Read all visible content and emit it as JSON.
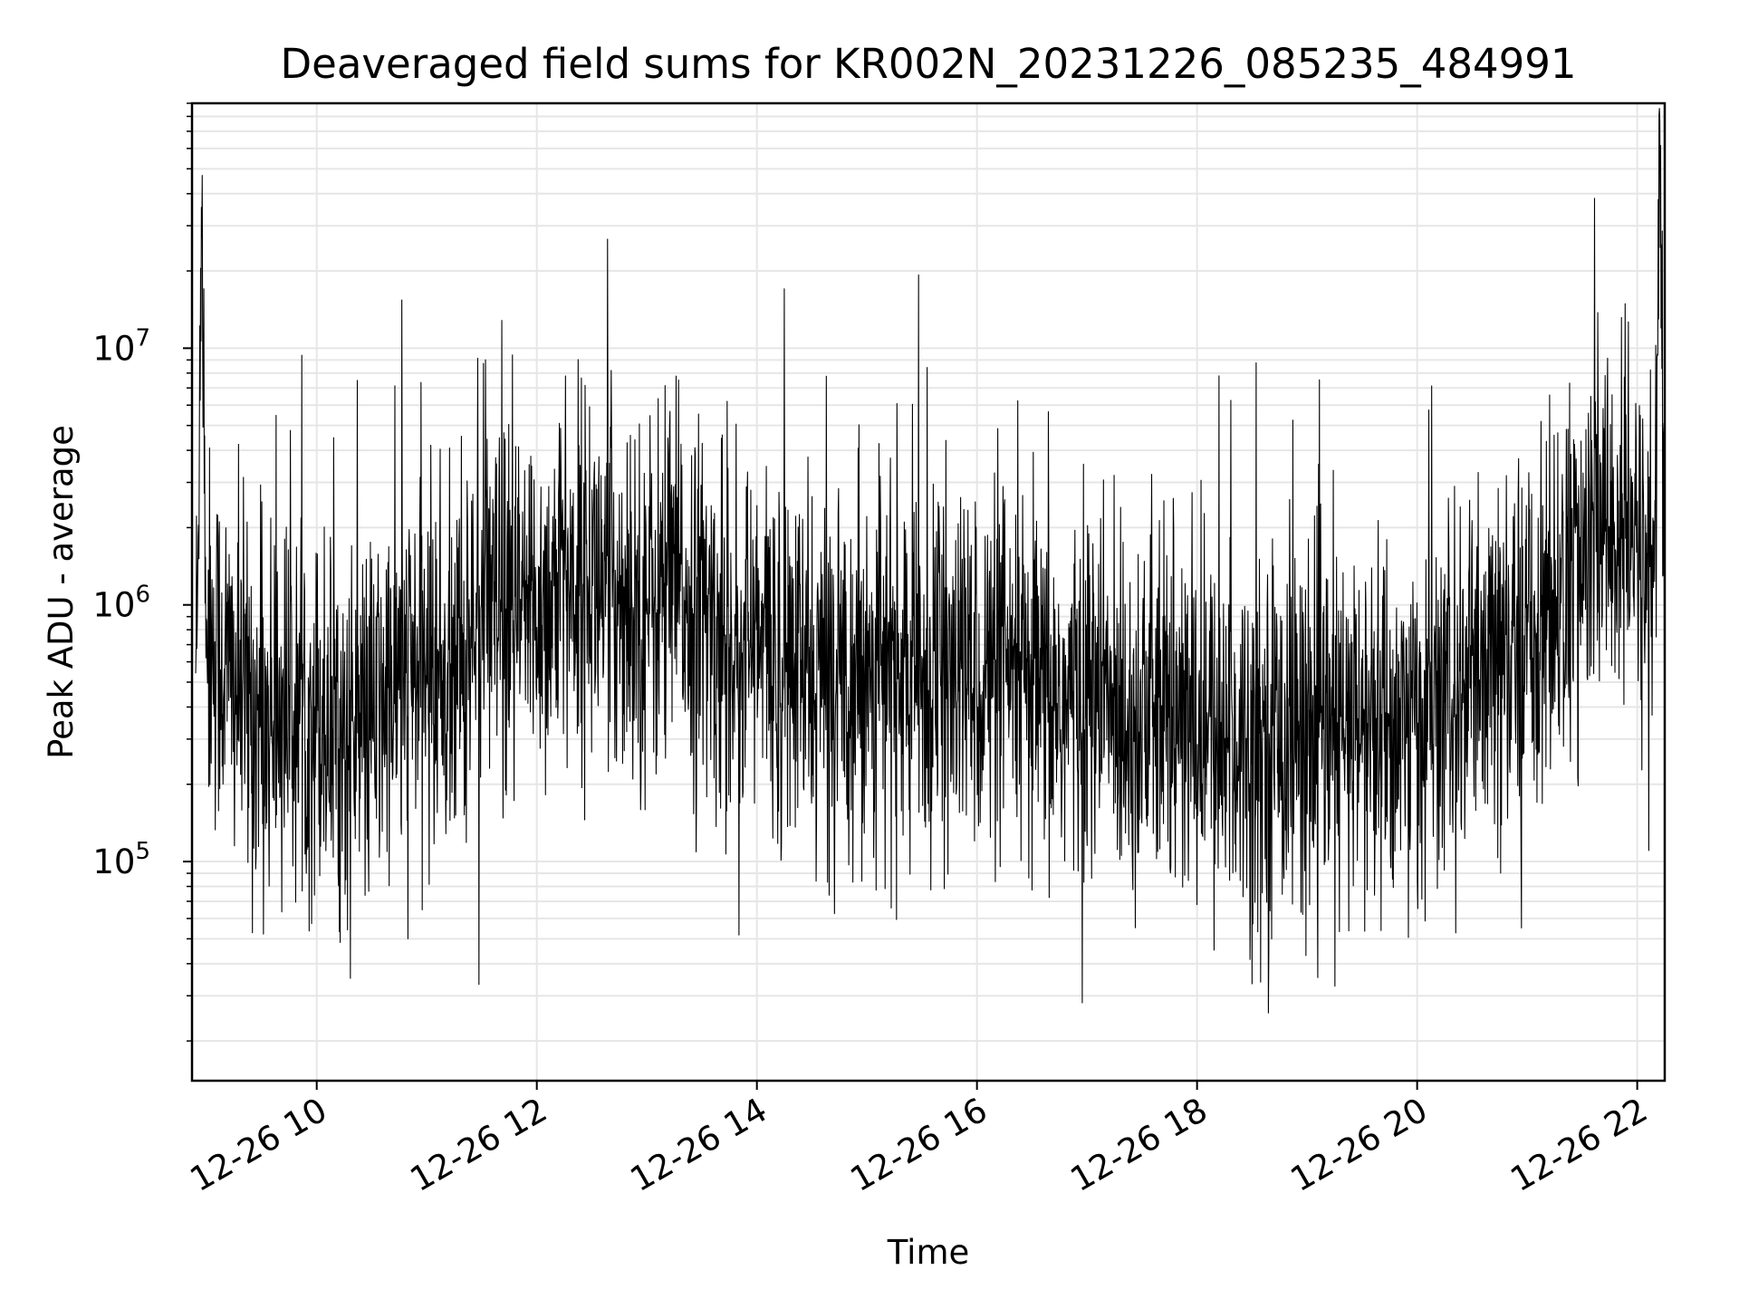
{
  "chart_data": {
    "type": "line",
    "title": "Deaveraged field sums for KR002N_20231226_085235_484991",
    "xlabel": "Time",
    "ylabel": "Peak ADU - average",
    "y_scale": "log",
    "grid": true,
    "legend": "none",
    "colors": {
      "line": "#000000",
      "grid": "#e6e6e6",
      "axes": "#000000"
    },
    "xlim": [
      "2023-12-26 08:52",
      "2023-12-26 22:15"
    ],
    "ylim": [
      14000,
      90000000
    ],
    "x_ticks": [
      {
        "value": "2023-12-26 10:00",
        "label": "12-26 10"
      },
      {
        "value": "2023-12-26 12:00",
        "label": "12-26 12"
      },
      {
        "value": "2023-12-26 14:00",
        "label": "12-26 14"
      },
      {
        "value": "2023-12-26 16:00",
        "label": "12-26 16"
      },
      {
        "value": "2023-12-26 18:00",
        "label": "12-26 18"
      },
      {
        "value": "2023-12-26 20:00",
        "label": "12-26 20"
      },
      {
        "value": "2023-12-26 22:00",
        "label": "12-26 22"
      }
    ],
    "y_ticks": [
      {
        "value": 100000,
        "base": "10",
        "exponent": "5"
      },
      {
        "value": 1000000,
        "base": "10",
        "exponent": "6"
      },
      {
        "value": 10000000,
        "base": "10",
        "exponent": "7"
      }
    ],
    "series": [
      {
        "x": [
          "2023-12-26 08:55",
          "2023-12-26 08:57",
          "2023-12-26 09:00",
          "2023-12-26 09:15",
          "2023-12-26 09:30",
          "2023-12-26 09:45",
          "2023-12-26 10:00",
          "2023-12-26 10:15",
          "2023-12-26 10:30",
          "2023-12-26 10:45",
          "2023-12-26 11:00",
          "2023-12-26 11:15",
          "2023-12-26 11:30",
          "2023-12-26 11:45",
          "2023-12-26 12:00",
          "2023-12-26 12:15",
          "2023-12-26 12:30",
          "2023-12-26 12:45",
          "2023-12-26 13:00",
          "2023-12-26 13:15",
          "2023-12-26 13:30",
          "2023-12-26 13:45",
          "2023-12-26 14:00",
          "2023-12-26 14:15",
          "2023-12-26 14:30",
          "2023-12-26 14:45",
          "2023-12-26 15:00",
          "2023-12-26 15:15",
          "2023-12-26 15:30",
          "2023-12-26 15:45",
          "2023-12-26 16:00",
          "2023-12-26 16:15",
          "2023-12-26 16:30",
          "2023-12-26 16:45",
          "2023-12-26 17:00",
          "2023-12-26 17:15",
          "2023-12-26 17:30",
          "2023-12-26 17:45",
          "2023-12-26 18:00",
          "2023-12-26 18:15",
          "2023-12-26 18:30",
          "2023-12-26 18:45",
          "2023-12-26 19:00",
          "2023-12-26 19:15",
          "2023-12-26 19:30",
          "2023-12-26 19:45",
          "2023-12-26 20:00",
          "2023-12-26 20:15",
          "2023-12-26 20:30",
          "2023-12-26 20:45",
          "2023-12-26 21:00",
          "2023-12-26 21:15",
          "2023-12-26 21:30",
          "2023-12-26 21:45",
          "2023-12-26 22:00",
          "2023-12-26 22:10",
          "2023-12-26 22:12",
          "2023-12-26 22:15"
        ],
        "values": [
          700000,
          50000000,
          800000,
          500000,
          350000,
          400000,
          400000,
          300000,
          350000,
          500000,
          600000,
          500000,
          1000000,
          800000,
          1000000,
          1200000,
          1300000,
          1100000,
          1000000,
          1200000,
          900000,
          700000,
          700000,
          600000,
          500000,
          550000,
          600000,
          550000,
          500000,
          500000,
          550000,
          500000,
          450000,
          400000,
          450000,
          400000,
          380000,
          350000,
          320000,
          300000,
          300000,
          320000,
          330000,
          300000,
          320000,
          330000,
          350000,
          380000,
          450000,
          550000,
          750000,
          1000000,
          1500000,
          2000000,
          1600000,
          1400000,
          60000000,
          900000
        ]
      }
    ],
    "plotted_point_count": 3600
  }
}
